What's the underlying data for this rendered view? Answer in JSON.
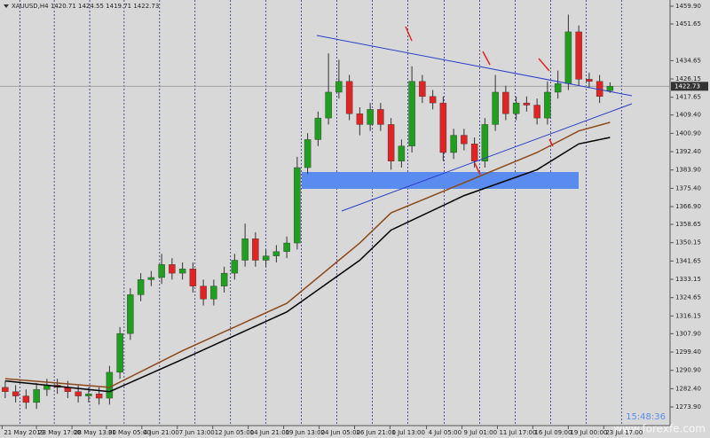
{
  "chart_data": {
    "type": "candlestick",
    "title": "XAUUSD,H4  1420.71 1424.55 1419.71 1422.73",
    "clock": "15:48:36",
    "watermark": "www.forexfe.com",
    "up_color": "#1f9e1f",
    "down_color": "#e02424",
    "open": [
      1283,
      1281,
      1279,
      1276,
      1282,
      1284,
      1283,
      1281,
      1279,
      1280,
      1278,
      1290,
      1308,
      1326,
      1333,
      1334,
      1340,
      1336,
      1338,
      1330,
      1324,
      1330,
      1336,
      1342,
      1352,
      1342,
      1344,
      1346,
      1350,
      1385,
      1398,
      1408,
      1420,
      1425,
      1410,
      1405,
      1412,
      1405,
      1388,
      1395,
      1425,
      1418,
      1415,
      1392,
      1400,
      1396,
      1388,
      1405,
      1420,
      1410,
      1415,
      1414,
      1408,
      1420,
      1424,
      1448,
      1426,
      1425,
      1420.71
    ],
    "high": [
      1286,
      1284,
      1282,
      1285,
      1287,
      1287,
      1286,
      1284,
      1283,
      1283,
      1293,
      1311,
      1329,
      1336,
      1337,
      1345,
      1343,
      1341,
      1341,
      1333,
      1333,
      1339,
      1345,
      1359,
      1355,
      1347,
      1349,
      1353,
      1390,
      1401,
      1411,
      1438,
      1435,
      1428,
      1413,
      1415,
      1415,
      1408,
      1398,
      1432,
      1428,
      1421,
      1418,
      1403,
      1403,
      1399,
      1408,
      1428,
      1423,
      1418,
      1418,
      1417,
      1425,
      1430,
      1456,
      1451,
      1429,
      1428,
      1424.55
    ],
    "low": [
      1278,
      1276,
      1273,
      1273,
      1279,
      1280,
      1278,
      1276,
      1276,
      1275,
      1275,
      1287,
      1305,
      1323,
      1330,
      1331,
      1333,
      1333,
      1327,
      1321,
      1321,
      1327,
      1333,
      1339,
      1339,
      1339,
      1341,
      1343,
      1347,
      1382,
      1395,
      1405,
      1417,
      1407,
      1400,
      1402,
      1402,
      1384,
      1385,
      1392,
      1415,
      1412,
      1388,
      1389,
      1393,
      1385,
      1385,
      1402,
      1407,
      1407,
      1411,
      1405,
      1405,
      1417,
      1421,
      1423,
      1422,
      1415,
      1419.71
    ],
    "close": [
      1281,
      1279,
      1276,
      1282,
      1284,
      1283,
      1281,
      1279,
      1280,
      1278,
      1290,
      1308,
      1326,
      1333,
      1334,
      1340,
      1336,
      1338,
      1330,
      1324,
      1330,
      1336,
      1342,
      1352,
      1342,
      1344,
      1346,
      1350,
      1385,
      1398,
      1408,
      1420,
      1425,
      1410,
      1405,
      1412,
      1405,
      1388,
      1395,
      1425,
      1418,
      1415,
      1392,
      1400,
      1396,
      1388,
      1405,
      1420,
      1410,
      1415,
      1414,
      1408,
      1420,
      1424,
      1448,
      1426,
      1425,
      1418,
      1422.73
    ],
    "ma_x": [
      0,
      10,
      17,
      27,
      34,
      37,
      44,
      51,
      55,
      58
    ],
    "series": [
      {
        "color": "#8b4a1c",
        "values": [
          1287,
          1283,
          1300,
          1322,
          1350,
          1364,
          1378,
          1392,
          1402,
          1406
        ]
      },
      {
        "color": "#000000",
        "values": [
          1286,
          1281,
          1296,
          1318,
          1342,
          1356,
          1372,
          1384,
          1396,
          1399
        ]
      }
    ],
    "last_price": 1422.73,
    "xlim": [
      0,
      64
    ],
    "ylim": [
      1265.26,
      1462.78
    ],
    "yticks": [
      {
        "value": 1459.9,
        "label": "1459.90"
      },
      1451.65,
      1434.65,
      1426.15,
      1417.65,
      {
        "value": 1409.4,
        "label": "1409.40"
      },
      {
        "value": 1400.9,
        "label": "1400.90"
      },
      {
        "value": 1392.4,
        "label": "1392.40"
      },
      {
        "value": 1383.9,
        "label": "1383.90"
      },
      {
        "value": 1375.4,
        "label": "1375.40"
      },
      {
        "value": 1366.9,
        "label": "1366.90"
      },
      1358.65,
      1350.15,
      1341.65,
      1333.15,
      1324.65,
      1316.15,
      {
        "value": 1307.9,
        "label": "1307.90"
      },
      {
        "value": 1299.4,
        "label": "1299.40"
      },
      {
        "value": 1290.9,
        "label": "1290.90"
      },
      {
        "value": 1282.4,
        "label": "1282.40"
      },
      {
        "value": 1273.9,
        "label": "1273.90"
      }
    ],
    "xticks": [
      {
        "value": 0.2,
        "label": "21 May 2019"
      },
      {
        "value": 3.5,
        "label": "23 May 17:00"
      },
      {
        "value": 6.9,
        "label": "28 May 13:00"
      },
      {
        "value": 10.2,
        "label": "31 May 05:00"
      },
      {
        "value": 13.6,
        "label": "4 Jun 21:00"
      },
      {
        "value": 17,
        "label": "7 Jun 13:00"
      },
      {
        "value": 20.4,
        "label": "12 Jun 05:00"
      },
      {
        "value": 23.8,
        "label": "14 Jun 21:00"
      },
      {
        "value": 27.2,
        "label": "19 Jun 13:00"
      },
      {
        "value": 30.6,
        "label": "24 Jun 05:00"
      },
      {
        "value": 34,
        "label": "26 Jun 21:00"
      },
      {
        "value": 37.4,
        "label": "1 Jul 13:00"
      },
      {
        "value": 40.9,
        "label": "4 Jul 05:00"
      },
      {
        "value": 44.3,
        "label": "9 Jul 01:00"
      },
      {
        "value": 47.7,
        "label": "11 Jul 17:00"
      },
      {
        "value": 51.1,
        "label": "16 Jul 09:00"
      },
      {
        "value": 54.5,
        "label": "19 Jul 00:00"
      },
      {
        "value": 57.9,
        "label": "23 Jul 17:00"
      }
    ],
    "grid": true
  }
}
